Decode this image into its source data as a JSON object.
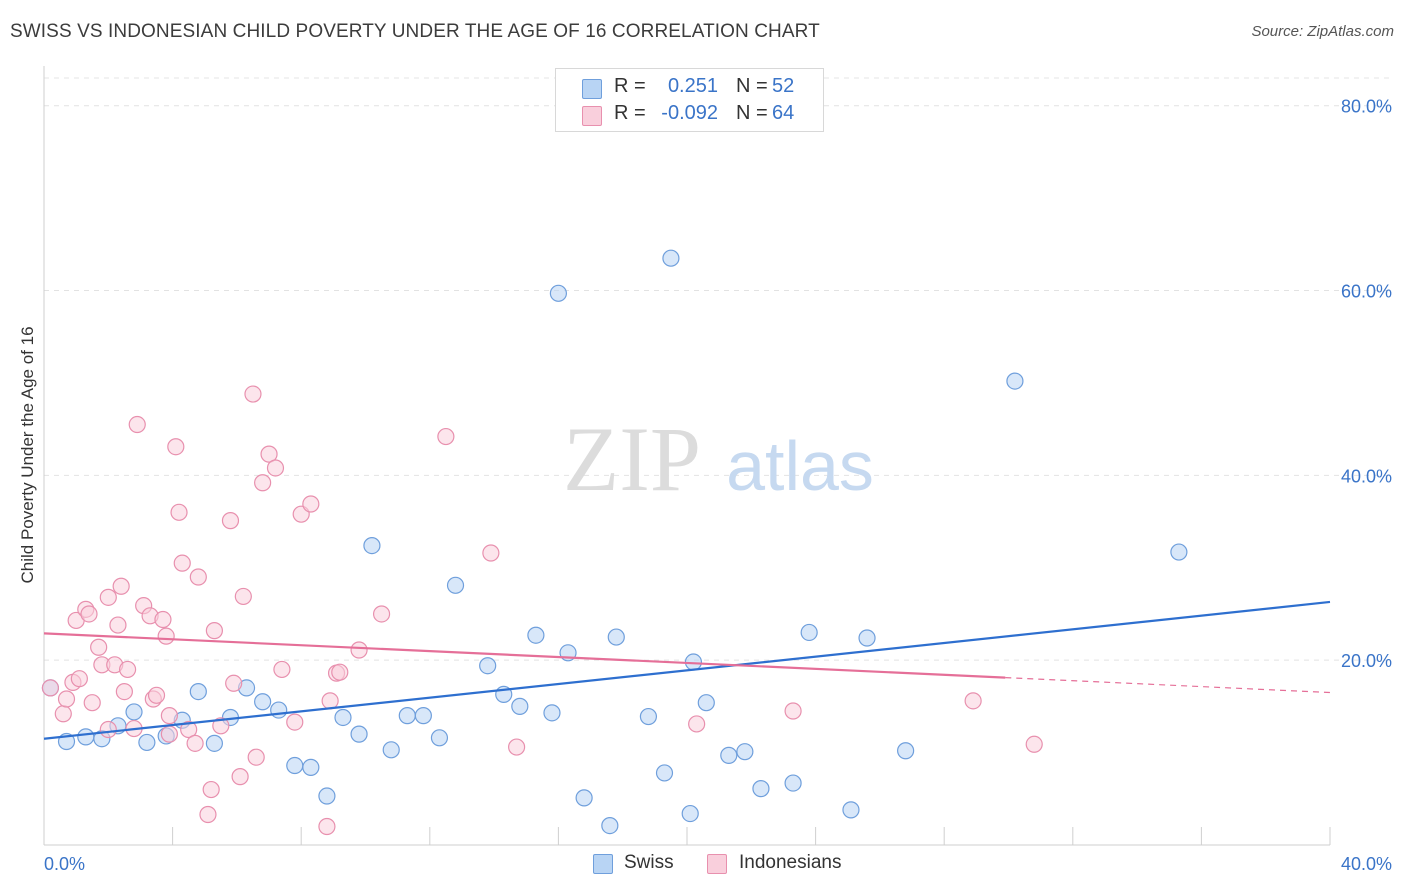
{
  "header": {
    "title": "SWISS VS INDONESIAN CHILD POVERTY UNDER THE AGE OF 16 CORRELATION CHART",
    "source": "Source: ZipAtlas.com"
  },
  "legend_top": {
    "rows": [
      {
        "r_label": "R =",
        "r_value": "0.251",
        "n_label": "N =",
        "n_value": "52",
        "color": "#a8c8f0",
        "stroke": "#6f9fdc"
      },
      {
        "r_label": "R =",
        "r_value": "-0.092",
        "n_label": "N =",
        "n_value": "64",
        "color": "#f7c3d3",
        "stroke": "#e890ae"
      }
    ]
  },
  "legend_bottom": {
    "items": [
      {
        "label": "Swiss",
        "color": "#b8d4f4",
        "stroke": "#6f9fdc"
      },
      {
        "label": "Indonesians",
        "color": "#f9cfdc",
        "stroke": "#e890ae"
      }
    ]
  },
  "watermark": {
    "zip": "ZIP",
    "atlas": "atlas"
  },
  "chart_data": {
    "type": "scatter",
    "title": "SWISS VS INDONESIAN CHILD POVERTY UNDER THE AGE OF 16 CORRELATION CHART",
    "xlabel": "",
    "ylabel": "Child Poverty Under the Age of 16",
    "xlim": [
      0,
      40
    ],
    "ylim": [
      0,
      83
    ],
    "x_tick_labels": [
      "0.0%",
      "40.0%"
    ],
    "y_ticks": [
      20,
      40,
      60,
      80
    ],
    "y_tick_labels": [
      "20.0%",
      "40.0%",
      "60.0%",
      "80.0%"
    ],
    "grid": true,
    "legend_position": "top-center",
    "series": [
      {
        "name": "Swiss",
        "color": "#6f9fdc",
        "fill": "#b8d4f4",
        "line_color": "#2e6fcf",
        "trend": {
          "x": [
            0,
            40
          ],
          "y": [
            11.5,
            26.3
          ],
          "solid_to": 40
        },
        "points": [
          [
            0.2,
            17.0
          ],
          [
            0.7,
            11.2
          ],
          [
            1.3,
            11.7
          ],
          [
            1.8,
            11.5
          ],
          [
            2.3,
            12.9
          ],
          [
            2.8,
            14.4
          ],
          [
            3.2,
            11.1
          ],
          [
            3.8,
            11.8
          ],
          [
            4.3,
            13.5
          ],
          [
            4.8,
            16.6
          ],
          [
            5.3,
            11.0
          ],
          [
            5.8,
            13.8
          ],
          [
            6.3,
            17.0
          ],
          [
            6.8,
            15.5
          ],
          [
            7.3,
            14.6
          ],
          [
            7.8,
            8.6
          ],
          [
            8.3,
            8.4
          ],
          [
            8.8,
            5.3
          ],
          [
            9.3,
            13.8
          ],
          [
            9.8,
            12.0
          ],
          [
            10.2,
            32.4
          ],
          [
            10.8,
            10.3
          ],
          [
            11.3,
            14.0
          ],
          [
            11.8,
            14.0
          ],
          [
            12.3,
            11.6
          ],
          [
            12.8,
            28.1
          ],
          [
            13.8,
            19.4
          ],
          [
            14.3,
            16.3
          ],
          [
            14.8,
            15.0
          ],
          [
            15.3,
            22.7
          ],
          [
            15.8,
            14.3
          ],
          [
            16.3,
            20.8
          ],
          [
            16.0,
            59.7
          ],
          [
            16.8,
            5.1
          ],
          [
            17.6,
            2.1
          ],
          [
            17.8,
            22.5
          ],
          [
            18.8,
            13.9
          ],
          [
            19.3,
            7.8
          ],
          [
            19.5,
            63.5
          ],
          [
            20.2,
            19.8
          ],
          [
            20.1,
            3.4
          ],
          [
            20.6,
            15.4
          ],
          [
            21.3,
            9.7
          ],
          [
            21.8,
            10.1
          ],
          [
            22.3,
            6.1
          ],
          [
            23.3,
            6.7
          ],
          [
            23.8,
            23.0
          ],
          [
            25.1,
            3.8
          ],
          [
            25.6,
            22.4
          ],
          [
            26.8,
            10.2
          ],
          [
            30.2,
            50.2
          ],
          [
            35.3,
            31.7
          ]
        ]
      },
      {
        "name": "Indonesians",
        "color": "#e890ae",
        "fill": "#f9cfdc",
        "line_color": "#e56f98",
        "trend": {
          "x": [
            0,
            40
          ],
          "y": [
            22.9,
            16.5
          ],
          "solid_to": 29.9
        },
        "points": [
          [
            0.2,
            17.0
          ],
          [
            0.6,
            14.2
          ],
          [
            0.7,
            15.8
          ],
          [
            0.9,
            17.6
          ],
          [
            1.0,
            24.3
          ],
          [
            1.1,
            18.0
          ],
          [
            1.3,
            25.5
          ],
          [
            1.4,
            25.0
          ],
          [
            1.5,
            15.4
          ],
          [
            1.7,
            21.4
          ],
          [
            1.8,
            19.5
          ],
          [
            2.0,
            26.8
          ],
          [
            2.2,
            19.5
          ],
          [
            2.3,
            23.8
          ],
          [
            2.4,
            28.0
          ],
          [
            2.5,
            16.6
          ],
          [
            2.6,
            19.0
          ],
          [
            2.8,
            12.6
          ],
          [
            2.9,
            45.5
          ],
          [
            3.1,
            25.9
          ],
          [
            3.3,
            24.8
          ],
          [
            3.4,
            15.8
          ],
          [
            3.5,
            16.2
          ],
          [
            3.7,
            24.4
          ],
          [
            3.8,
            22.6
          ],
          [
            3.9,
            14.0
          ],
          [
            4.1,
            43.1
          ],
          [
            4.2,
            36.0
          ],
          [
            4.3,
            30.5
          ],
          [
            4.5,
            12.5
          ],
          [
            4.7,
            11.0
          ],
          [
            4.8,
            29.0
          ],
          [
            5.1,
            3.3
          ],
          [
            5.2,
            6.0
          ],
          [
            5.3,
            23.2
          ],
          [
            5.5,
            12.9
          ],
          [
            5.8,
            35.1
          ],
          [
            5.9,
            17.5
          ],
          [
            6.1,
            7.4
          ],
          [
            6.2,
            26.9
          ],
          [
            6.5,
            48.8
          ],
          [
            6.6,
            9.5
          ],
          [
            6.8,
            39.2
          ],
          [
            7.0,
            42.3
          ],
          [
            7.2,
            40.8
          ],
          [
            7.4,
            19.0
          ],
          [
            7.8,
            13.3
          ],
          [
            8.0,
            35.8
          ],
          [
            8.3,
            36.9
          ],
          [
            8.8,
            2.0
          ],
          [
            8.9,
            15.6
          ],
          [
            9.1,
            18.6
          ],
          [
            9.2,
            18.7
          ],
          [
            9.8,
            21.1
          ],
          [
            10.5,
            25.0
          ],
          [
            12.5,
            44.2
          ],
          [
            13.9,
            31.6
          ],
          [
            14.7,
            10.6
          ],
          [
            20.3,
            13.1
          ],
          [
            23.3,
            14.5
          ],
          [
            28.9,
            15.6
          ],
          [
            30.8,
            10.9
          ],
          [
            3.9,
            12.0
          ],
          [
            2.0,
            12.5
          ]
        ]
      }
    ]
  }
}
